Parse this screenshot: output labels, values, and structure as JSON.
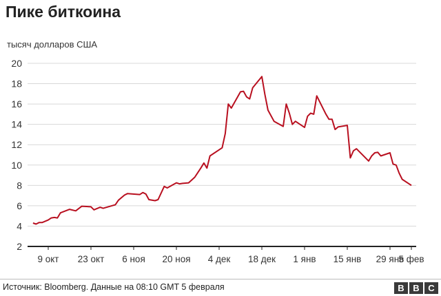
{
  "header": {
    "title": "Пике биткоина"
  },
  "footer": {
    "source": "Источник: Bloomberg. Данные на 08:10 GMT 5 февраля",
    "logo": "BBC"
  },
  "chart_data": {
    "type": "line",
    "title": "Пике биткоина",
    "ylabel": "тысяч долларов США",
    "xlabel": "",
    "ylim": [
      2,
      20
    ],
    "yticks": [
      2,
      4,
      6,
      8,
      10,
      12,
      14,
      16,
      18,
      20
    ],
    "xticks": [
      {
        "date": "2017-10-09",
        "label": "9 окт"
      },
      {
        "date": "2017-10-23",
        "label": "23 окт"
      },
      {
        "date": "2017-11-06",
        "label": "6 ноя"
      },
      {
        "date": "2017-11-20",
        "label": "20 ноя"
      },
      {
        "date": "2017-12-04",
        "label": "4 дек"
      },
      {
        "date": "2017-12-18",
        "label": "18 дек"
      },
      {
        "date": "2018-01-01",
        "label": "1 янв"
      },
      {
        "date": "2018-01-15",
        "label": "15 янв"
      },
      {
        "date": "2018-01-29",
        "label": "29 янв"
      },
      {
        "date": "2018-02-05",
        "label": "5 фев"
      }
    ],
    "grid": true,
    "color": "#b80f1f",
    "x": [
      "2017-10-04",
      "2017-10-05",
      "2017-10-06",
      "2017-10-07",
      "2017-10-09",
      "2017-10-10",
      "2017-10-11",
      "2017-10-12",
      "2017-10-13",
      "2017-10-16",
      "2017-10-18",
      "2017-10-20",
      "2017-10-23",
      "2017-10-24",
      "2017-10-26",
      "2017-10-27",
      "2017-10-31",
      "2017-11-01",
      "2017-11-03",
      "2017-11-04",
      "2017-11-08",
      "2017-11-09",
      "2017-11-10",
      "2017-11-11",
      "2017-11-13",
      "2017-11-14",
      "2017-11-16",
      "2017-11-17",
      "2017-11-20",
      "2017-11-21",
      "2017-11-22",
      "2017-11-24",
      "2017-11-26",
      "2017-11-28",
      "2017-11-29",
      "2017-11-30",
      "2017-12-01",
      "2017-12-05",
      "2017-12-06",
      "2017-12-07",
      "2017-12-08",
      "2017-12-11",
      "2017-12-12",
      "2017-12-13",
      "2017-12-14",
      "2017-12-15",
      "2017-12-18",
      "2017-12-19",
      "2017-12-20",
      "2017-12-22",
      "2017-12-25",
      "2017-12-26",
      "2017-12-27",
      "2017-12-28",
      "2017-12-29",
      "2018-01-01",
      "2018-01-02",
      "2018-01-03",
      "2018-01-04",
      "2018-01-05",
      "2018-01-08",
      "2018-01-09",
      "2018-01-10",
      "2018-01-11",
      "2018-01-12",
      "2018-01-15",
      "2018-01-16",
      "2018-01-17",
      "2018-01-18",
      "2018-01-22",
      "2018-01-23",
      "2018-01-24",
      "2018-01-25",
      "2018-01-26",
      "2018-01-29",
      "2018-01-30",
      "2018-01-31",
      "2018-02-01",
      "2018-02-02",
      "2018-02-05"
    ],
    "values": [
      4.3,
      4.2,
      4.35,
      4.35,
      4.6,
      4.8,
      4.85,
      4.8,
      5.3,
      5.65,
      5.5,
      5.95,
      5.9,
      5.6,
      5.85,
      5.75,
      6.1,
      6.55,
      7.05,
      7.2,
      7.1,
      7.3,
      7.15,
      6.6,
      6.5,
      6.6,
      7.9,
      7.75,
      8.25,
      8.15,
      8.2,
      8.25,
      8.8,
      9.7,
      10.2,
      9.7,
      10.9,
      11.7,
      13.1,
      16.0,
      15.6,
      17.2,
      17.25,
      16.7,
      16.5,
      17.6,
      18.7,
      16.95,
      15.4,
      14.3,
      13.8,
      16.0,
      15.1,
      14.0,
      14.3,
      13.7,
      14.8,
      15.1,
      15.0,
      16.8,
      15.0,
      14.5,
      14.5,
      13.5,
      13.75,
      13.9,
      10.7,
      11.4,
      11.6,
      10.4,
      10.9,
      11.2,
      11.25,
      10.9,
      11.2,
      10.1,
      10.0,
      9.2,
      8.6,
      8.0
    ]
  }
}
